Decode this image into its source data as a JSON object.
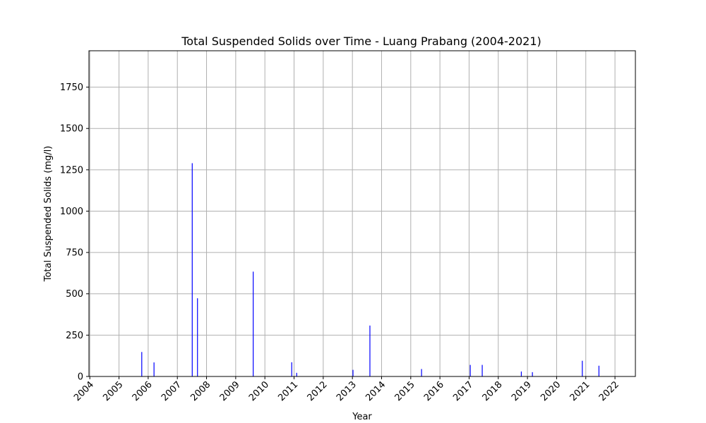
{
  "chart_data": {
    "type": "bar",
    "title": "Total Suspended Solids over Time - Luang Prabang (2004-2021)",
    "xlabel": "Year",
    "ylabel": "Total Suspended Solids (mg/l)",
    "x_ticks": [
      "2004",
      "2005",
      "2006",
      "2007",
      "2008",
      "2009",
      "2010",
      "2011",
      "2012",
      "2013",
      "2014",
      "2015",
      "2016",
      "2017",
      "2018",
      "2019",
      "2020",
      "2021",
      "2022"
    ],
    "y_ticks": [
      0,
      250,
      500,
      750,
      1000,
      1250,
      1500,
      1750
    ],
    "xlim": [
      2003.97,
      2022.7
    ],
    "ylim": [
      0,
      1970
    ],
    "grid": true,
    "bar_color": "#0000ff",
    "data": [
      {
        "x": 2005.78,
        "y": 148
      },
      {
        "x": 2006.2,
        "y": 85
      },
      {
        "x": 2007.51,
        "y": 1290
      },
      {
        "x": 2007.69,
        "y": 473
      },
      {
        "x": 2009.6,
        "y": 634
      },
      {
        "x": 2010.92,
        "y": 86
      },
      {
        "x": 2011.09,
        "y": 22
      },
      {
        "x": 2013.02,
        "y": 40
      },
      {
        "x": 2013.6,
        "y": 308
      },
      {
        "x": 2015.37,
        "y": 45
      },
      {
        "x": 2017.04,
        "y": 70
      },
      {
        "x": 2017.45,
        "y": 70
      },
      {
        "x": 2018.79,
        "y": 30
      },
      {
        "x": 2019.17,
        "y": 26
      },
      {
        "x": 2020.88,
        "y": 95
      },
      {
        "x": 2021.45,
        "y": 65
      }
    ]
  }
}
